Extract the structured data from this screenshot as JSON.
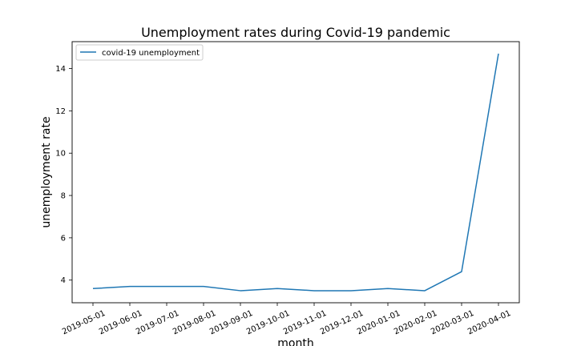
{
  "chart_data": {
    "type": "line",
    "title": "Unemployment rates during Covid-19 pandemic",
    "xlabel": "month",
    "ylabel": "unemployment rate",
    "categories": [
      "2019-05-01",
      "2019-06-01",
      "2019-07-01",
      "2019-08-01",
      "2019-09-01",
      "2019-10-01",
      "2019-11-01",
      "2019-12-01",
      "2020-01-01",
      "2020-02-01",
      "2020-03-01",
      "2020-04-01"
    ],
    "series": [
      {
        "name": "covid-19 unemployment",
        "values": [
          3.6,
          3.7,
          3.7,
          3.7,
          3.5,
          3.6,
          3.5,
          3.5,
          3.6,
          3.5,
          4.4,
          14.7
        ],
        "color": "#1f77b4"
      }
    ],
    "ylim": [
      2.93,
      15.27
    ],
    "yticks": [
      4,
      6,
      8,
      10,
      12,
      14
    ],
    "grid": false,
    "legend_position": "top-left",
    "colors": {
      "line": "#1f77b4",
      "axis": "#000000",
      "legend_border": "#cccccc",
      "background": "#ffffff"
    }
  }
}
